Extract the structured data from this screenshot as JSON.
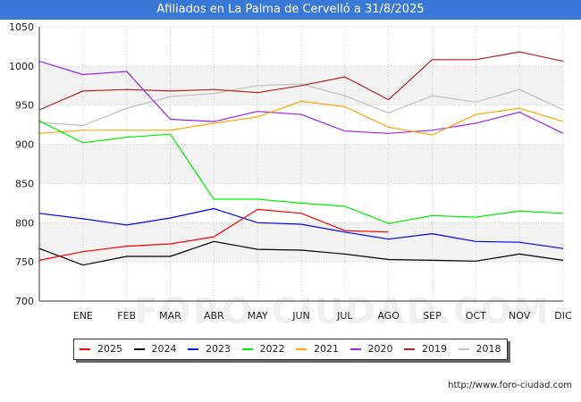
{
  "header": {
    "title": "Afiliados en La Palma de Cervelló a 31/8/2025"
  },
  "footer": {
    "url": "http://www.foro-ciudad.com"
  },
  "watermark": "FORO-CIUDAD.COM",
  "chart_data": {
    "type": "line",
    "title": "Afiliados en La Palma de Cervelló a 31/8/2025",
    "xlabel": "",
    "ylabel": "",
    "ylim": [
      700,
      1050
    ],
    "yticks": [
      700,
      750,
      800,
      850,
      900,
      950,
      1000,
      1050
    ],
    "categories": [
      "",
      "ENE",
      "FEB",
      "MAR",
      "ABR",
      "MAY",
      "JUN",
      "JUL",
      "AGO",
      "SEP",
      "OCT",
      "NOV",
      "DIC"
    ],
    "grid": true,
    "legend_position": "bottom",
    "series": [
      {
        "name": "2025",
        "color": "#ff0000",
        "values": [
          752,
          763,
          770,
          773,
          782,
          817,
          812,
          790,
          788,
          null,
          null,
          null,
          null
        ]
      },
      {
        "name": "2024",
        "color": "#000000",
        "values": [
          767,
          746,
          757,
          757,
          776,
          766,
          765,
          760,
          753,
          752,
          751,
          760,
          752
        ]
      },
      {
        "name": "2023",
        "color": "#0000ff",
        "values": [
          812,
          805,
          797,
          806,
          818,
          800,
          798,
          788,
          779,
          786,
          776,
          775,
          767
        ]
      },
      {
        "name": "2022",
        "color": "#00ee00",
        "values": [
          930,
          902,
          909,
          913,
          830,
          830,
          825,
          821,
          799,
          809,
          807,
          815,
          812
        ]
      },
      {
        "name": "2021",
        "color": "#ffa500",
        "values": [
          914,
          918,
          918,
          918,
          927,
          935,
          955,
          948,
          922,
          912,
          938,
          946,
          929
        ]
      },
      {
        "name": "2020",
        "color": "#a020f0",
        "values": [
          1006,
          989,
          993,
          932,
          929,
          942,
          938,
          917,
          914,
          918,
          927,
          941,
          914
        ]
      },
      {
        "name": "2019",
        "color": "#b22222",
        "values": [
          944,
          968,
          970,
          968,
          970,
          966,
          975,
          986,
          957,
          1008,
          1008,
          1018,
          1006
        ]
      },
      {
        "name": "2018",
        "color": "#c0c0c0",
        "values": [
          928,
          924,
          946,
          961,
          965,
          975,
          977,
          962,
          940,
          962,
          954,
          970,
          944
        ]
      }
    ]
  }
}
